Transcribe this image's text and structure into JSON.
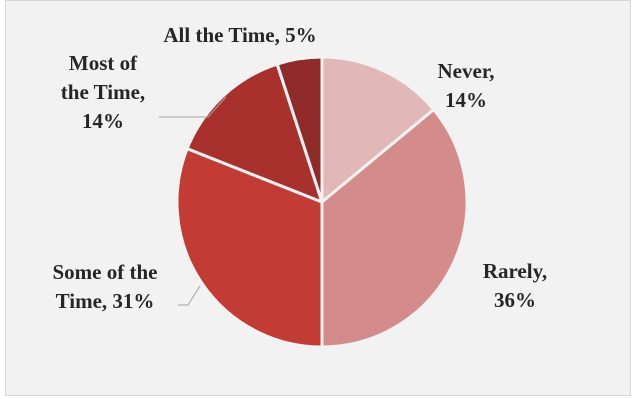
{
  "chart_data": {
    "type": "pie",
    "title": "",
    "slices": [
      {
        "label": "Never",
        "value": 14,
        "display": [
          "Never,",
          "14%"
        ],
        "color": "#e1b8b7"
      },
      {
        "label": "Rarely",
        "value": 36,
        "display": [
          "Rarely,",
          "36%"
        ],
        "color": "#d48b8b"
      },
      {
        "label": "Some of the Time",
        "value": 31,
        "display": [
          "Some of the",
          "Time, 31%"
        ],
        "color": "#c23b35"
      },
      {
        "label": "Most of the Time",
        "value": 14,
        "display": [
          "Most of",
          "the Time,",
          "14%"
        ],
        "color": "#a8302d"
      },
      {
        "label": "All the Time",
        "value": 5,
        "display": [
          "All the Time, 5%"
        ],
        "color": "#8e2a27"
      }
    ],
    "start_angle_deg": 0,
    "direction": "clockwise",
    "legend": "none",
    "slice_border_color": "#f2f2f2"
  }
}
